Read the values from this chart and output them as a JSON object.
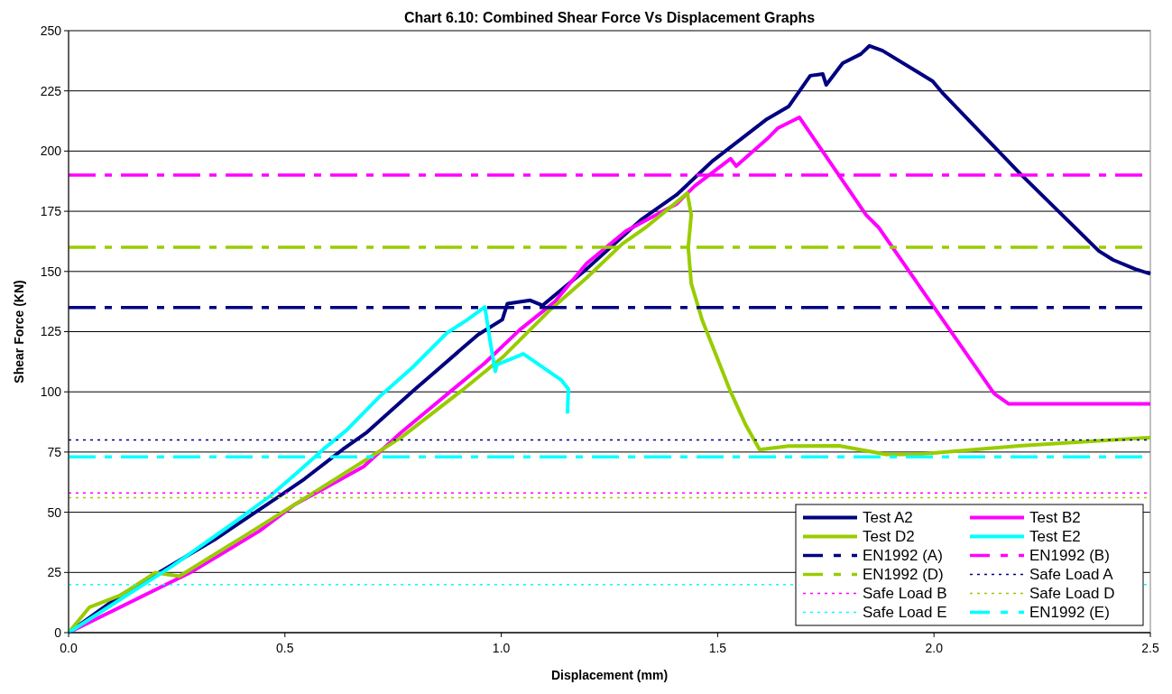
{
  "chart_data": {
    "type": "line",
    "title": "Chart 6.10: Combined Shear Force Vs Displacement Graphs",
    "xlabel": "Displacement (mm)",
    "ylabel": "Shear Force (KN)",
    "xlim": [
      0,
      2.5
    ],
    "xticks": [
      {
        "value": 0,
        "label": "0.0"
      },
      {
        "value": 0.5,
        "label": "0.5"
      },
      {
        "value": 1,
        "label": "1.0"
      },
      {
        "value": 1.5,
        "label": "1.5"
      },
      {
        "value": 2,
        "label": "2.0"
      },
      {
        "value": 2.5,
        "label": "2.5"
      }
    ],
    "ylim": [
      0,
      250
    ],
    "yticks": [
      0,
      25,
      50,
      75,
      100,
      125,
      150,
      175,
      200,
      225,
      250
    ],
    "grid": "y",
    "legend": "bottom right",
    "series": [
      {
        "name": "Test A2",
        "color": "#000080",
        "line_style": "solid",
        "x": [
          0,
          0.12,
          0.337,
          0.48,
          0.545,
          0.633,
          0.69,
          0.8,
          0.834,
          0.946,
          1.0025,
          1.014,
          1.067,
          1.095,
          1.197,
          1.322,
          1.405,
          1.489,
          1.614,
          1.664,
          1.714,
          1.743,
          1.751,
          1.789,
          1.831,
          1.851,
          1.881,
          1.997,
          2.018,
          2.198,
          2.381,
          2.414,
          2.465,
          2.5
        ],
        "values": [
          0,
          15.5,
          38.6,
          55.8,
          63.8,
          76,
          83.3,
          101,
          106.3,
          123.7,
          130,
          136.6,
          138,
          135.9,
          151,
          171.3,
          181.8,
          196,
          213.3,
          218.5,
          231.3,
          232,
          227.5,
          236.5,
          240.3,
          243.7,
          241.7,
          229,
          224.5,
          190.8,
          158.5,
          154.8,
          151,
          149
        ]
      },
      {
        "name": "Test B2",
        "color": "#ff00ff",
        "line_style": "solid",
        "x": [
          0,
          0.281,
          0.441,
          0.521,
          0.601,
          0.682,
          0.769,
          0.962,
          1.043,
          1.123,
          1.197,
          1.288,
          1.405,
          1.447,
          1.53,
          1.543,
          1.614,
          1.639,
          1.689,
          1.843,
          1.872,
          2.139,
          2.173,
          2.5
        ],
        "values": [
          0,
          24.9,
          42.2,
          53,
          60.9,
          69,
          83.2,
          112,
          125.8,
          137.3,
          153.3,
          166.8,
          178,
          185.5,
          196.8,
          193.8,
          205,
          209.5,
          214,
          173.5,
          168.3,
          99.3,
          95,
          95
        ]
      },
      {
        "name": "Test D2",
        "color": "#99cc00",
        "line_style": "solid",
        "x": [
          0,
          0.048,
          0.12,
          0.2,
          0.256,
          0.4,
          0.617,
          0.769,
          0.914,
          1.0025,
          1.115,
          1.197,
          1.28,
          1.334,
          1.43,
          1.439,
          1.432,
          1.439,
          1.464,
          1.53,
          1.564,
          1.597,
          1.664,
          1.781,
          1.889,
          1.956,
          2.198,
          2.5
        ],
        "values": [
          0,
          10.5,
          15.5,
          24.9,
          23.4,
          39.4,
          63.8,
          81.1,
          101.3,
          114.3,
          134.4,
          147.3,
          161.5,
          168.3,
          182.5,
          173.5,
          160,
          145,
          130,
          100,
          86.6,
          76,
          77.5,
          77.6,
          74,
          74,
          77.6,
          81
        ]
      },
      {
        "name": "Test E2",
        "color": "#00ffff",
        "line_style": "solid",
        "x": [
          0,
          0.24,
          0.377,
          0.465,
          0.53,
          0.593,
          0.642,
          0.721,
          0.794,
          0.874,
          0.922,
          0.962,
          0.974,
          0.986,
          0.99,
          1.051,
          1.138,
          1.155,
          1.153
        ],
        "values": [
          0,
          27.7,
          45,
          56.6,
          66.7,
          76.8,
          84,
          98.4,
          110,
          124.4,
          130,
          135.3,
          121.4,
          108.5,
          111.3,
          115.8,
          105,
          101.2,
          91
        ]
      },
      {
        "name": "EN1992 (A)",
        "color": "#000080",
        "line_style": "dashed",
        "x": [
          0,
          2.5
        ],
        "values": [
          135,
          135
        ]
      },
      {
        "name": "EN1992 (B)",
        "color": "#ff00ff",
        "line_style": "dashed",
        "x": [
          0,
          2.5
        ],
        "values": [
          190,
          190
        ]
      },
      {
        "name": "EN1992 (D)",
        "color": "#99cc00",
        "line_style": "dashed",
        "x": [
          0,
          2.5
        ],
        "values": [
          160,
          160
        ]
      },
      {
        "name": "Safe Load A",
        "color": "#000080",
        "line_style": "dotted",
        "x": [
          0,
          2.5
        ],
        "values": [
          80,
          80
        ]
      },
      {
        "name": "Safe Load B",
        "color": "#ff00ff",
        "line_style": "dotted",
        "x": [
          0,
          2.5
        ],
        "values": [
          58,
          58
        ]
      },
      {
        "name": "Safe Load D",
        "color": "#99cc00",
        "line_style": "dotted",
        "x": [
          0,
          2.5
        ],
        "values": [
          56,
          56
        ]
      },
      {
        "name": "Safe Load E",
        "color": "#00ffff",
        "line_style": "dotted",
        "x": [
          0,
          2.5
        ],
        "values": [
          20,
          20
        ]
      },
      {
        "name": "EN1992 (E)",
        "color": "#00ffff",
        "line_style": "dashed",
        "x": [
          0,
          2.5
        ],
        "values": [
          73,
          73
        ]
      }
    ]
  }
}
